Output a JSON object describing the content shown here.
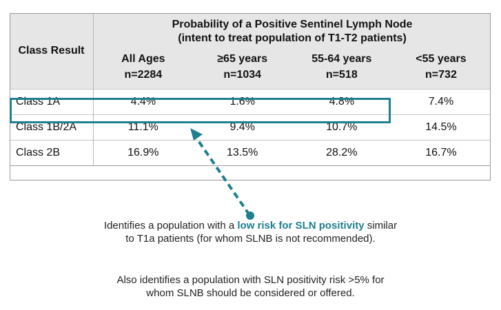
{
  "table": {
    "row_header": "Class Result",
    "title_line1": "Probability of a Positive Sentinel Lymph Node",
    "title_line2": "(intent to treat population of T1-T2 patients)",
    "columns": [
      {
        "label": "All Ages",
        "n": "n=2284"
      },
      {
        "label": "≥65 years",
        "n": "n=1034"
      },
      {
        "label": "55-64 years",
        "n": "n=518"
      },
      {
        "label": "<55 years",
        "n": "n=732"
      }
    ],
    "rows": [
      {
        "label": "Class 1A",
        "values": [
          "4.4%",
          "1.6%",
          "4.8%",
          "7.4%"
        ]
      },
      {
        "label": "Class 1B/2A",
        "values": [
          "11.1%",
          "9.4%",
          "10.7%",
          "14.5%"
        ]
      },
      {
        "label": "Class 2B",
        "values": [
          "16.9%",
          "13.5%",
          "28.2%",
          "16.7%"
        ]
      }
    ]
  },
  "notes": {
    "note1_before": "Identifies a population with a ",
    "note1_highlight": "low risk for SLN positivity",
    "note1_after": " similar",
    "note1_line2": "to T1a patients (for whom SLNB is not recommended).",
    "note2_line1": "Also identifies a population with SLN positivity risk >5% for",
    "note2_line2": "whom SLNB should be considered or offered."
  },
  "colors": {
    "accent": "#1e7f8f",
    "header_bg": "#e6e6e6"
  }
}
